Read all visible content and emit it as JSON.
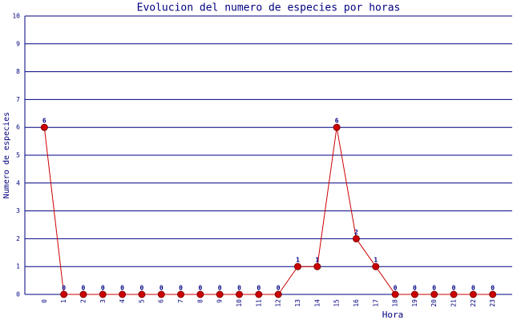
{
  "chart_data": {
    "type": "line",
    "title": "Evolucion del numero de especies por horas",
    "x_label": "Hora",
    "y_label": "Numero de especies",
    "categories": [
      "0",
      "1",
      "2",
      "3",
      "4",
      "5",
      "6",
      "7",
      "8",
      "9",
      "10",
      "11",
      "12",
      "13",
      "14",
      "15",
      "16",
      "17",
      "18",
      "19",
      "20",
      "21",
      "22",
      "23"
    ],
    "series": [
      {
        "name": "especies",
        "color": "#cc0000",
        "values": [
          6,
          0,
          0,
          0,
          0,
          0,
          0,
          0,
          0,
          0,
          0,
          0,
          0,
          1,
          1,
          6,
          2,
          1,
          0,
          0,
          0,
          0,
          0,
          0
        ]
      }
    ],
    "ylim": [
      0,
      10
    ],
    "yticks": [
      0,
      1,
      2,
      3,
      4,
      5,
      6,
      7,
      8,
      9,
      10
    ],
    "grid": true
  }
}
